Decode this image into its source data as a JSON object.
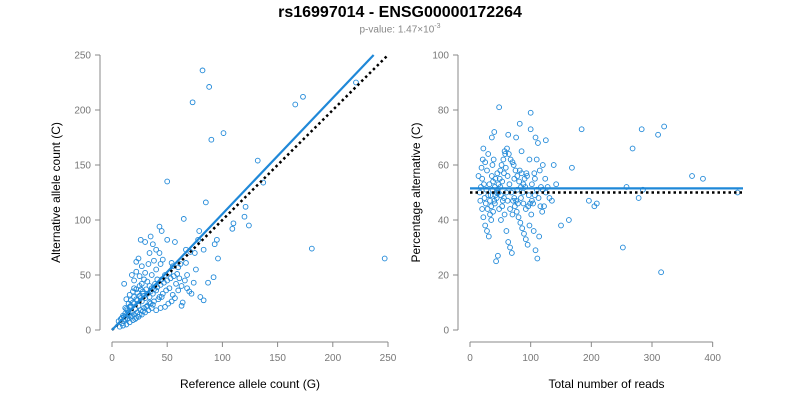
{
  "figure": {
    "title": "rs16997014 - ENSG00000172264",
    "subtitle_prefix": "p-value: 1.47×10",
    "subtitle_exponent": "-3"
  },
  "colors": {
    "points": "#1f88d8",
    "fit_line": "#1f88d8",
    "reference_line": "#000000",
    "axis": "#888888",
    "tick_label": "#777777"
  },
  "chart_data": [
    {
      "type": "scatter",
      "xlabel": "Reference allele count (G)",
      "ylabel": "Alternative allele count (C)",
      "xlim": [
        0,
        250
      ],
      "ylim": [
        0,
        250
      ],
      "xticks": [
        0,
        50,
        100,
        150,
        200,
        250
      ],
      "yticks": [
        0,
        50,
        100,
        150,
        200,
        250
      ],
      "fit_line": {
        "x": [
          0,
          237
        ],
        "y": [
          0,
          250
        ]
      },
      "reference_line": {
        "x": [
          0,
          250
        ],
        "y": [
          0,
          250
        ]
      },
      "points": [
        [
          82,
          236
        ],
        [
          88,
          221
        ],
        [
          73,
          207
        ],
        [
          166,
          205
        ],
        [
          173,
          212
        ],
        [
          221,
          225
        ],
        [
          101,
          179
        ],
        [
          90,
          173
        ],
        [
          132,
          154
        ],
        [
          137,
          134
        ],
        [
          50,
          135
        ],
        [
          85,
          116
        ],
        [
          181,
          74
        ],
        [
          247,
          65
        ],
        [
          110,
          97
        ],
        [
          109,
          92
        ],
        [
          120,
          103
        ],
        [
          121,
          112
        ],
        [
          124,
          95
        ],
        [
          65,
          101
        ],
        [
          95,
          82
        ],
        [
          93,
          78
        ],
        [
          83,
          73
        ],
        [
          96,
          65
        ],
        [
          79,
          90
        ],
        [
          78,
          82
        ],
        [
          75,
          70
        ],
        [
          71,
          71
        ],
        [
          67,
          73
        ],
        [
          67,
          61
        ],
        [
          62,
          60
        ],
        [
          60,
          57
        ],
        [
          55,
          58
        ],
        [
          52,
          52
        ],
        [
          48,
          50
        ],
        [
          45,
          46
        ],
        [
          44,
          60
        ],
        [
          40,
          55
        ],
        [
          38,
          63
        ],
        [
          43,
          70
        ],
        [
          40,
          73
        ],
        [
          37,
          78
        ],
        [
          35,
          85
        ],
        [
          30,
          80
        ],
        [
          26,
          82
        ],
        [
          43,
          94
        ],
        [
          45,
          90
        ],
        [
          33,
          60
        ],
        [
          20,
          45
        ],
        [
          11,
          42
        ],
        [
          18,
          50
        ],
        [
          22,
          53
        ],
        [
          25,
          49
        ],
        [
          29,
          46
        ],
        [
          32,
          44
        ],
        [
          34,
          40
        ],
        [
          36,
          38
        ],
        [
          39,
          42
        ],
        [
          41,
          46
        ],
        [
          43,
          30
        ],
        [
          46,
          33
        ],
        [
          49,
          36
        ],
        [
          52,
          38
        ],
        [
          55,
          32
        ],
        [
          57,
          29
        ],
        [
          60,
          36
        ],
        [
          63,
          40
        ],
        [
          66,
          45
        ],
        [
          68,
          50
        ],
        [
          70,
          35
        ],
        [
          72,
          33
        ],
        [
          80,
          30
        ],
        [
          83,
          27
        ],
        [
          87,
          43
        ],
        [
          64,
          25
        ],
        [
          63,
          22
        ],
        [
          54,
          26
        ],
        [
          51,
          24
        ],
        [
          48,
          21
        ],
        [
          44,
          20
        ],
        [
          40,
          18
        ],
        [
          37,
          23
        ],
        [
          34,
          25
        ],
        [
          31,
          21
        ],
        [
          28,
          17
        ],
        [
          25,
          14
        ],
        [
          22,
          11
        ],
        [
          19,
          9
        ],
        [
          16,
          7
        ],
        [
          13,
          5
        ],
        [
          10,
          4
        ],
        [
          8,
          10
        ],
        [
          11,
          12
        ],
        [
          14,
          15
        ],
        [
          12,
          20
        ],
        [
          15,
          24
        ],
        [
          17,
          27
        ],
        [
          20,
          30
        ],
        [
          23,
          34
        ],
        [
          26,
          37
        ],
        [
          28,
          33
        ],
        [
          30,
          29
        ],
        [
          27,
          26
        ],
        [
          24,
          22
        ],
        [
          21,
          19
        ],
        [
          18,
          16
        ],
        [
          15,
          13
        ],
        [
          12,
          10
        ],
        [
          9,
          6
        ],
        [
          7,
          3
        ],
        [
          6,
          8
        ],
        [
          13,
          28
        ],
        [
          16,
          32
        ],
        [
          19,
          35
        ],
        [
          22,
          37
        ],
        [
          25,
          40
        ],
        [
          27,
          42
        ],
        [
          17,
          22
        ],
        [
          20,
          24
        ],
        [
          23,
          27
        ],
        [
          26,
          29
        ],
        [
          29,
          31
        ],
        [
          32,
          33
        ],
        [
          35,
          35
        ],
        [
          38,
          37
        ],
        [
          41,
          39
        ],
        [
          44,
          41
        ],
        [
          47,
          43
        ],
        [
          50,
          45
        ],
        [
          53,
          47
        ],
        [
          56,
          49
        ],
        [
          59,
          51
        ],
        [
          14,
          18
        ],
        [
          12,
          15
        ],
        [
          10,
          13
        ],
        [
          9,
          11
        ],
        [
          11,
          8
        ],
        [
          14,
          10
        ],
        [
          17,
          12
        ],
        [
          20,
          14
        ],
        [
          23,
          16
        ],
        [
          26,
          18
        ],
        [
          29,
          20
        ],
        [
          32,
          22
        ],
        [
          35,
          24
        ],
        [
          38,
          26
        ],
        [
          42,
          28
        ],
        [
          45,
          30
        ],
        [
          36,
          20
        ],
        [
          33,
          18
        ],
        [
          30,
          16
        ],
        [
          27,
          14
        ],
        [
          24,
          12
        ],
        [
          21,
          10
        ],
        [
          18,
          13
        ],
        [
          15,
          16
        ],
        [
          13,
          19
        ],
        [
          16,
          21
        ],
        [
          19,
          25
        ],
        [
          22,
          28
        ],
        [
          25,
          31
        ],
        [
          28,
          35
        ],
        [
          31,
          37
        ],
        [
          34,
          30
        ],
        [
          37,
          33
        ],
        [
          40,
          36
        ],
        [
          58,
          42
        ],
        [
          61,
          47
        ],
        [
          68,
          38
        ],
        [
          74,
          43
        ],
        [
          76,
          55
        ],
        [
          92,
          48
        ],
        [
          30,
          52
        ],
        [
          27,
          58
        ],
        [
          24,
          65
        ],
        [
          22,
          62
        ],
        [
          36,
          50
        ],
        [
          46,
          64
        ],
        [
          34,
          70
        ],
        [
          50,
          82
        ],
        [
          57,
          80
        ],
        [
          54,
          61
        ],
        [
          20,
          38
        ]
      ]
    },
    {
      "type": "scatter",
      "xlabel": "Total number of reads",
      "ylabel": "Percentage alternative (C)",
      "xlim": [
        0,
        450
      ],
      "ylim": [
        0,
        100
      ],
      "xticks": [
        0,
        100,
        200,
        300,
        400
      ],
      "yticks": [
        0,
        20,
        40,
        60,
        80,
        100
      ],
      "fit_line": {
        "x": [
          0,
          450
        ],
        "y": [
          51.5,
          51.5
        ]
      },
      "reference_line": {
        "x": [
          0,
          450
        ],
        "y": [
          50,
          50
        ]
      },
      "points": [
        [
          48,
          81
        ],
        [
          82,
          75
        ],
        [
          100,
          79
        ],
        [
          108,
          70
        ],
        [
          100,
          73
        ],
        [
          112,
          68
        ],
        [
          125,
          69
        ],
        [
          120,
          60
        ],
        [
          107,
          55
        ],
        [
          98,
          62
        ],
        [
          85,
          65
        ],
        [
          76,
          70
        ],
        [
          63,
          71
        ],
        [
          57,
          65
        ],
        [
          40,
          72
        ],
        [
          36,
          70
        ],
        [
          30,
          64
        ],
        [
          28,
          58
        ],
        [
          25,
          61
        ],
        [
          22,
          66
        ],
        [
          20,
          55
        ],
        [
          18,
          52
        ],
        [
          16,
          50
        ],
        [
          14,
          56
        ],
        [
          17,
          47
        ],
        [
          20,
          44
        ],
        [
          22,
          41
        ],
        [
          25,
          38
        ],
        [
          28,
          36
        ],
        [
          31,
          34
        ],
        [
          35,
          40
        ],
        [
          38,
          43
        ],
        [
          41,
          46
        ],
        [
          44,
          48
        ],
        [
          47,
          50
        ],
        [
          50,
          52
        ],
        [
          53,
          54
        ],
        [
          56,
          57
        ],
        [
          59,
          59
        ],
        [
          62,
          56
        ],
        [
          65,
          53
        ],
        [
          68,
          50
        ],
        [
          71,
          47
        ],
        [
          74,
          45
        ],
        [
          77,
          43
        ],
        [
          80,
          41
        ],
        [
          83,
          39
        ],
        [
          86,
          37
        ],
        [
          89,
          35
        ],
        [
          92,
          33
        ],
        [
          95,
          31
        ],
        [
          98,
          38
        ],
        [
          101,
          42
        ],
        [
          104,
          46
        ],
        [
          107,
          49
        ],
        [
          110,
          51
        ],
        [
          113,
          48
        ],
        [
          116,
          45
        ],
        [
          119,
          43
        ],
        [
          122,
          45
        ],
        [
          125,
          50
        ],
        [
          128,
          52
        ],
        [
          131,
          48
        ],
        [
          138,
          60
        ],
        [
          142,
          53
        ],
        [
          150,
          38
        ],
        [
          163,
          40
        ],
        [
          168,
          59
        ],
        [
          184,
          73
        ],
        [
          196,
          47
        ],
        [
          205,
          45
        ],
        [
          209,
          46
        ],
        [
          252,
          30
        ],
        [
          258,
          52
        ],
        [
          268,
          66
        ],
        [
          278,
          48
        ],
        [
          283,
          73
        ],
        [
          285,
          51
        ],
        [
          310,
          71
        ],
        [
          315,
          21
        ],
        [
          320,
          74
        ],
        [
          366,
          56
        ],
        [
          384,
          55
        ],
        [
          441,
          50
        ],
        [
          32,
          53
        ],
        [
          34,
          49
        ],
        [
          37,
          60
        ],
        [
          39,
          62
        ],
        [
          42,
          55
        ],
        [
          45,
          57
        ],
        [
          48,
          44
        ],
        [
          51,
          40
        ],
        [
          54,
          47
        ],
        [
          57,
          42
        ],
        [
          60,
          36
        ],
        [
          63,
          32
        ],
        [
          66,
          30
        ],
        [
          69,
          28
        ],
        [
          46,
          27
        ],
        [
          43,
          25
        ],
        [
          72,
          60
        ],
        [
          75,
          58
        ],
        [
          78,
          56
        ],
        [
          81,
          54
        ],
        [
          84,
          52
        ],
        [
          87,
          50
        ],
        [
          90,
          55
        ],
        [
          93,
          57
        ],
        [
          96,
          45
        ],
        [
          99,
          46
        ],
        [
          102,
          47
        ],
        [
          105,
          36
        ],
        [
          108,
          29
        ],
        [
          111,
          26
        ],
        [
          114,
          34
        ],
        [
          117,
          52
        ],
        [
          120,
          51
        ],
        [
          24,
          48
        ],
        [
          26,
          46
        ],
        [
          29,
          44
        ],
        [
          33,
          42
        ],
        [
          36,
          56
        ],
        [
          38,
          54
        ],
        [
          41,
          52
        ],
        [
          44,
          50
        ],
        [
          47,
          53
        ],
        [
          50,
          58
        ],
        [
          52,
          60
        ],
        [
          55,
          62
        ],
        [
          58,
          64
        ],
        [
          61,
          66
        ],
        [
          64,
          64
        ],
        [
          67,
          62
        ],
        [
          70,
          61
        ],
        [
          73,
          48
        ],
        [
          76,
          47
        ],
        [
          79,
          46
        ],
        [
          82,
          58
        ],
        [
          85,
          57
        ],
        [
          88,
          53
        ],
        [
          91,
          52
        ],
        [
          94,
          56
        ],
        [
          19,
          59
        ],
        [
          21,
          62
        ],
        [
          23,
          53
        ],
        [
          27,
          51
        ],
        [
          30,
          49
        ],
        [
          33,
          47
        ],
        [
          35,
          45
        ],
        [
          37,
          51
        ],
        [
          40,
          47
        ],
        [
          42,
          49
        ],
        [
          45,
          51
        ],
        [
          49,
          55
        ],
        [
          51,
          49
        ],
        [
          53,
          45
        ],
        [
          56,
          48
        ],
        [
          60,
          50
        ],
        [
          62,
          47
        ],
        [
          66,
          44
        ],
        [
          70,
          42
        ],
        [
          73,
          55
        ],
        [
          78,
          51
        ],
        [
          84,
          48
        ],
        [
          88,
          46
        ],
        [
          92,
          44
        ],
        [
          97,
          49
        ],
        [
          102,
          53
        ],
        [
          106,
          57
        ],
        [
          110,
          62
        ],
        [
          115,
          58
        ],
        [
          124,
          55
        ],
        [
          135,
          47
        ]
      ]
    }
  ]
}
